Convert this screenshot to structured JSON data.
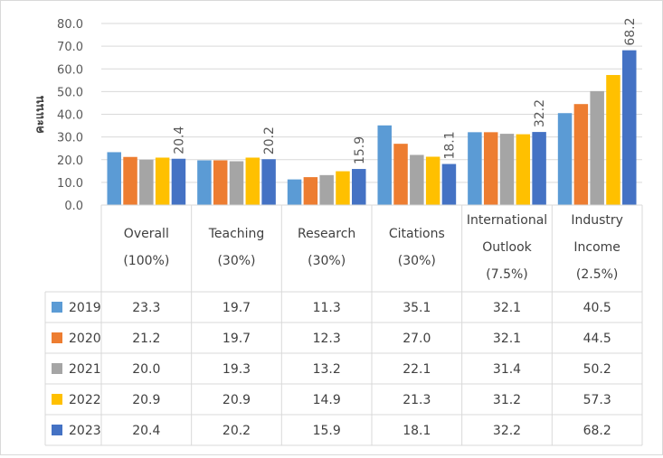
{
  "chart_data": {
    "type": "bar",
    "ylabel": "คะแนน",
    "ylim": [
      0,
      80
    ],
    "ytick_step": 10,
    "categories": [
      [
        "Overall",
        "(100%)"
      ],
      [
        "Teaching",
        "(30%)"
      ],
      [
        "Research",
        "(30%)"
      ],
      [
        "Citations",
        "(30%)"
      ],
      [
        "International",
        "Outlook",
        "(7.5%)"
      ],
      [
        "Industry",
        "Income",
        "(2.5%)"
      ]
    ],
    "series": [
      {
        "name": "2019",
        "color": "#5b9bd5",
        "values": [
          23.3,
          19.7,
          11.3,
          35.1,
          32.1,
          40.5
        ]
      },
      {
        "name": "2020",
        "color": "#ed7d31",
        "values": [
          21.2,
          19.7,
          12.3,
          27.0,
          32.1,
          44.5
        ]
      },
      {
        "name": "2021",
        "color": "#a5a5a5",
        "values": [
          20.0,
          19.3,
          13.2,
          22.1,
          31.4,
          50.2
        ]
      },
      {
        "name": "2022",
        "color": "#ffc000",
        "values": [
          20.9,
          20.9,
          14.9,
          21.3,
          31.2,
          57.3
        ]
      },
      {
        "name": "2023",
        "color": "#4472c4",
        "values": [
          20.4,
          20.2,
          15.9,
          18.1,
          32.2,
          68.2
        ]
      }
    ],
    "data_labels_series": "2023",
    "grid": true,
    "legend": "data-table"
  }
}
